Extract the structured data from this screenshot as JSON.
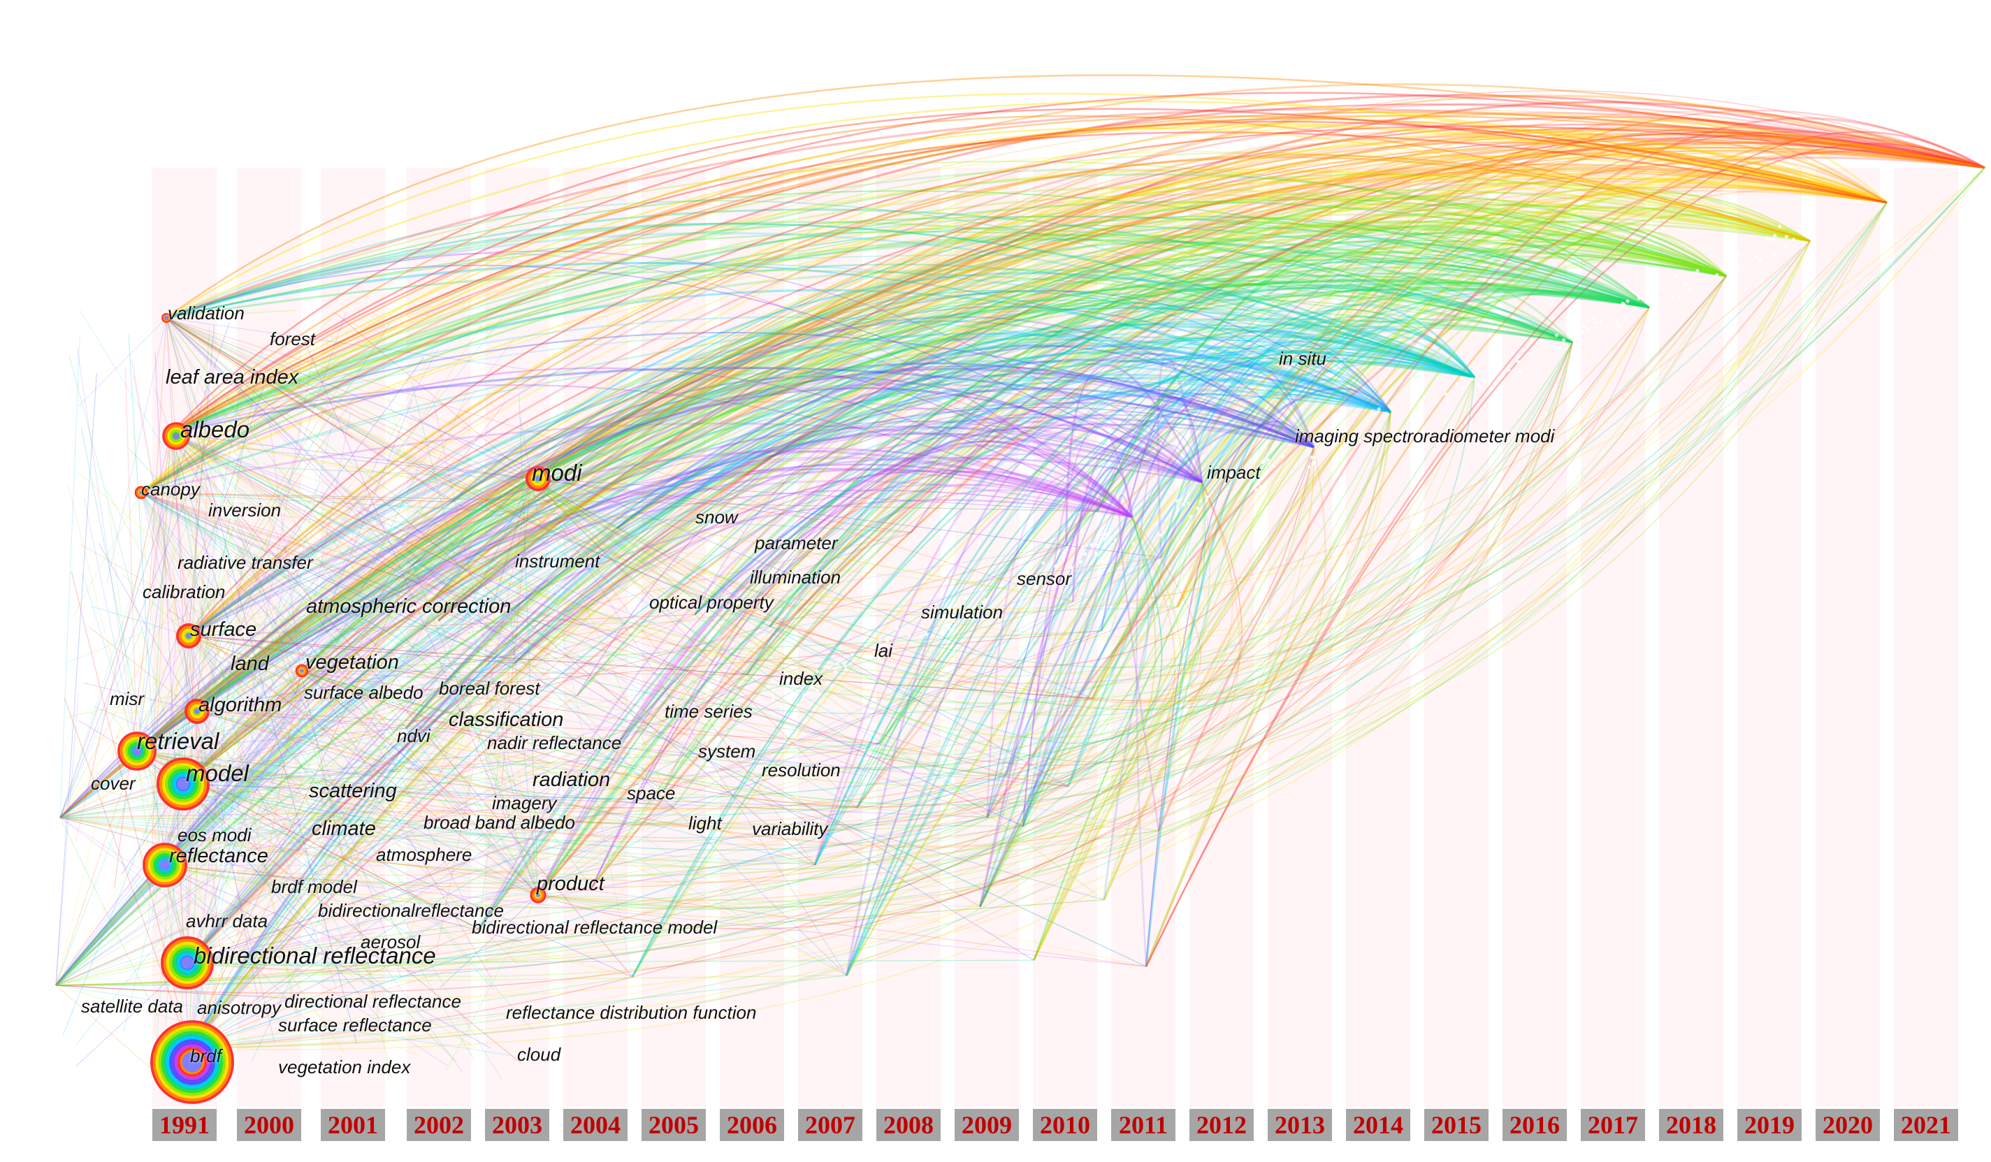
{
  "keywords": [
    {
      "id": "validation",
      "label": "validation"
    },
    {
      "id": "forest",
      "label": "forest"
    },
    {
      "id": "leaf-area-index",
      "label": "leaf area index"
    },
    {
      "id": "albedo",
      "label": "albedo"
    },
    {
      "id": "canopy",
      "label": "canopy"
    },
    {
      "id": "inversion",
      "label": "inversion"
    },
    {
      "id": "radiative-transfer",
      "label": "radiative transfer"
    },
    {
      "id": "calibration",
      "label": "calibration"
    },
    {
      "id": "surface",
      "label": "surface"
    },
    {
      "id": "land",
      "label": "land"
    },
    {
      "id": "misr",
      "label": "misr"
    },
    {
      "id": "algorithm",
      "label": "algorithm"
    },
    {
      "id": "retrieval",
      "label": "retrieval"
    },
    {
      "id": "cover",
      "label": "cover"
    },
    {
      "id": "model",
      "label": "model"
    },
    {
      "id": "eos-modi",
      "label": "eos modi"
    },
    {
      "id": "reflectance",
      "label": "reflectance"
    },
    {
      "id": "avhrr-data",
      "label": "avhrr data"
    },
    {
      "id": "bidirectional-reflectance",
      "label": "bidirectional reflectance"
    },
    {
      "id": "satellite-data",
      "label": "satellite data"
    },
    {
      "id": "anisotropy",
      "label": "anisotropy"
    },
    {
      "id": "brdf",
      "label": "brdf"
    },
    {
      "id": "atmospheric-correction",
      "label": "atmospheric correction"
    },
    {
      "id": "vegetation",
      "label": "vegetation"
    },
    {
      "id": "surface-albedo",
      "label": "surface albedo"
    },
    {
      "id": "scattering",
      "label": "scattering"
    },
    {
      "id": "climate",
      "label": "climate"
    },
    {
      "id": "brdf-model",
      "label": "brdf model"
    },
    {
      "id": "directional-reflectance",
      "label": "directional reflectance"
    },
    {
      "id": "surface-reflectance",
      "label": "surface reflectance"
    },
    {
      "id": "vegetation-index",
      "label": "vegetation index"
    },
    {
      "id": "boreal-forest",
      "label": "boreal forest"
    },
    {
      "id": "ndvi",
      "label": "ndvi"
    },
    {
      "id": "classification",
      "label": "classification"
    },
    {
      "id": "nadir-reflectance",
      "label": "nadir reflectance"
    },
    {
      "id": "radiation",
      "label": "radiation"
    },
    {
      "id": "imagery",
      "label": "imagery"
    },
    {
      "id": "broad-band-albedo",
      "label": "broad band albedo"
    },
    {
      "id": "atmosphere",
      "label": "atmosphere"
    },
    {
      "id": "bidirectionalreflectance",
      "label": "bidirectionalreflectance"
    },
    {
      "id": "aerosol",
      "label": "aerosol"
    },
    {
      "id": "modi",
      "label": "modi"
    },
    {
      "id": "instrument",
      "label": "instrument"
    },
    {
      "id": "product",
      "label": "product"
    },
    {
      "id": "bidirectional-reflectance-model",
      "label": "bidirectional reflectance model"
    },
    {
      "id": "reflectance-distribution-function",
      "label": "reflectance distribution function"
    },
    {
      "id": "cloud",
      "label": "cloud"
    },
    {
      "id": "snow",
      "label": "snow"
    },
    {
      "id": "parameter",
      "label": "parameter"
    },
    {
      "id": "illumination",
      "label": "illumination"
    },
    {
      "id": "optical-property",
      "label": "optical property"
    },
    {
      "id": "time-series",
      "label": "time series"
    },
    {
      "id": "system",
      "label": "system"
    },
    {
      "id": "space",
      "label": "space"
    },
    {
      "id": "light",
      "label": "light"
    },
    {
      "id": "index",
      "label": "index"
    },
    {
      "id": "resolution",
      "label": "resolution"
    },
    {
      "id": "variability",
      "label": "variability"
    },
    {
      "id": "simulation",
      "label": "simulation"
    },
    {
      "id": "sensor",
      "label": "sensor"
    },
    {
      "id": "lai",
      "label": "lai"
    },
    {
      "id": "impact",
      "label": "impact"
    },
    {
      "id": "in-situ",
      "label": "in situ"
    },
    {
      "id": "imaging-spectroradiometer-modi",
      "label": "imaging spectroradiometer modi"
    }
  ],
  "years": [
    "1991",
    "2000",
    "2001",
    "2002",
    "2003",
    "2004",
    "2005",
    "2006",
    "2007",
    "2008",
    "2009",
    "2010",
    "2011",
    "2012",
    "2013",
    "2014",
    "2015",
    "2016",
    "2017",
    "2018",
    "2019",
    "2020",
    "2021"
  ],
  "colors": {
    "year_bar_bg": "#a6a6a6",
    "year_text": "#c00000",
    "link_palette": [
      "#ff3030",
      "#ff8a00",
      "#ffe000",
      "#9ae600",
      "#2de02d",
      "#00d4a0",
      "#00c8ff",
      "#3a5cff",
      "#7a3cff",
      "#c040ff"
    ]
  }
}
